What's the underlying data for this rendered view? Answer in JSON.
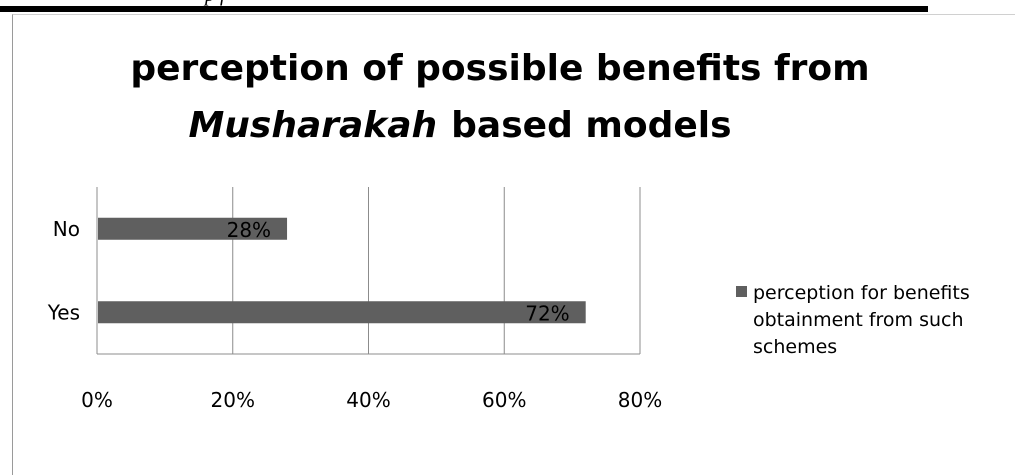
{
  "page_header_fragment": "p     f",
  "chart_data": {
    "type": "bar",
    "orientation": "horizontal",
    "title_line1": "perception of possible benefits from",
    "title_line2_italic": "Musharakah",
    "title_line2_rest": "based models",
    "categories": [
      "No",
      "Yes"
    ],
    "series": [
      {
        "name": "perception for benefits obtainment from such schemes",
        "legend_lines": [
          "perception for benefits",
          "obtainment from such",
          "schemes"
        ],
        "values": [
          0.28,
          0.72
        ],
        "data_labels": [
          "28%",
          "72%"
        ],
        "color": "#5f5f5f"
      }
    ],
    "x_ticks": [
      "0%",
      "20%",
      "40%",
      "60%",
      "80%"
    ],
    "xlim": [
      0,
      0.8
    ],
    "grid": true,
    "legend_position": "right"
  }
}
